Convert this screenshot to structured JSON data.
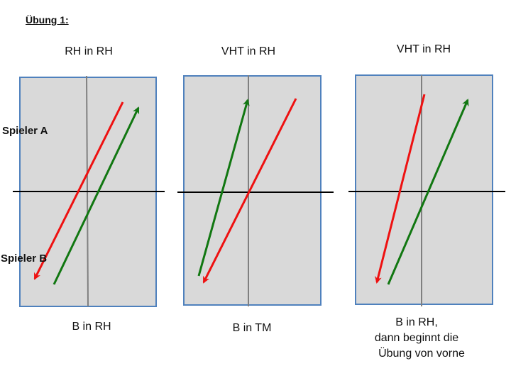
{
  "title": "Übung 1:",
  "side_labels": {
    "player_a": "Spieler A",
    "player_b": "Spieler B"
  },
  "panels": [
    {
      "heading": "RH in RH",
      "caption_lines": [
        "B in RH"
      ],
      "arrows": [
        {
          "color": "#ee1111",
          "direction": "down-left"
        },
        {
          "color": "#117711",
          "direction": "up-right"
        }
      ]
    },
    {
      "heading": "VHT in RH",
      "caption_lines": [
        "B in TM"
      ],
      "arrows": [
        {
          "color": "#117711",
          "direction": "up-right"
        },
        {
          "color": "#ee1111",
          "direction": "down-left"
        }
      ]
    },
    {
      "heading": "VHT in RH",
      "caption_lines": [
        "B in RH,",
        "dann beginnt die",
        "Übung von vorne"
      ],
      "arrows": [
        {
          "color": "#ee1111",
          "direction": "down-left"
        },
        {
          "color": "#117711",
          "direction": "up-right"
        }
      ]
    }
  ],
  "colors": {
    "table_fill": "#d9d9d9",
    "table_border": "#4f81bd",
    "center_line": "#808080",
    "net": "#000000",
    "arrow_red": "#ee1111",
    "arrow_green": "#117711"
  }
}
